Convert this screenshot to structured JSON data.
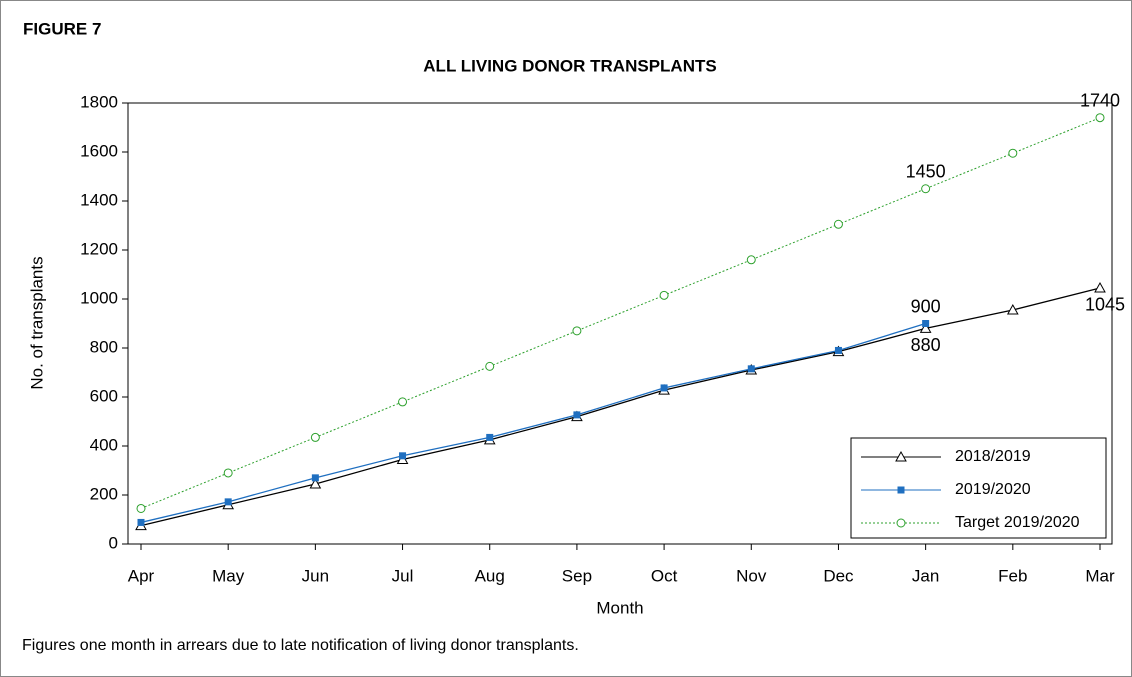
{
  "chart_data": {
    "type": "line",
    "figure_label": "FIGURE 7",
    "title": "ALL LIVING DONOR TRANSPLANTS",
    "x_label": "Month",
    "y_label": "No. of transplants",
    "footnote": "Figures one month in arrears due to late notification of living donor transplants.",
    "categories": [
      "Apr",
      "May",
      "Jun",
      "Jul",
      "Aug",
      "Sep",
      "Oct",
      "Nov",
      "Dec",
      "Jan",
      "Feb",
      "Mar"
    ],
    "series": [
      {
        "name": "2018/2019",
        "color": "#000000",
        "marker": "triangle",
        "values": [
          75,
          160,
          245,
          345,
          425,
          520,
          628,
          710,
          785,
          880,
          955,
          1045
        ]
      },
      {
        "name": "2019/2020",
        "color": "#1f6fc0",
        "marker": "square",
        "values": [
          88,
          172,
          270,
          360,
          435,
          527,
          637,
          715,
          790,
          900,
          null,
          null
        ]
      },
      {
        "name": "Target 2019/2020",
        "color": "#2ca02c",
        "marker": "circle",
        "dashed": true,
        "values": [
          145,
          290,
          435,
          580,
          725,
          870,
          1015,
          1160,
          1305,
          1450,
          1595,
          1740
        ]
      }
    ],
    "ylim": [
      0,
      1800
    ],
    "yticks": [
      0,
      200,
      400,
      600,
      800,
      1000,
      1200,
      1400,
      1600,
      1800
    ],
    "legend": "lower right",
    "grid": false
  }
}
